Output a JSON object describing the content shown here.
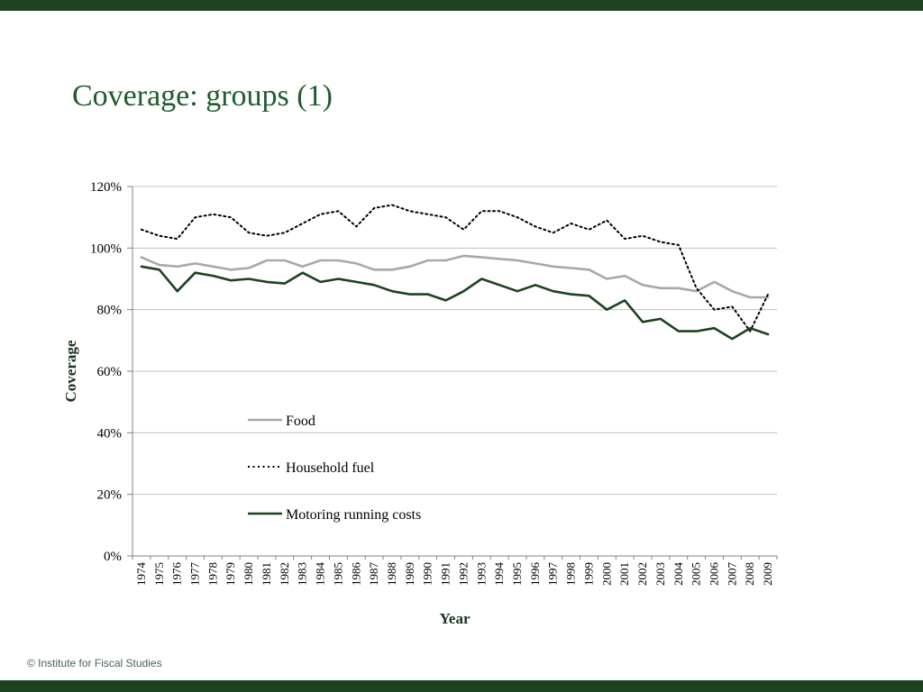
{
  "slide": {
    "title": "Coverage: groups (1)",
    "footer": "© Institute for Fiscal Studies"
  },
  "colors": {
    "border_bar": "#1c4220",
    "title_text": "#1e5c2c",
    "gridline": "#c0c0c0",
    "axis_line": "#808080",
    "food": "#a8a8a8",
    "household_fuel": "#000000",
    "motoring": "#1c4220"
  },
  "chart_data": {
    "type": "line",
    "title": "",
    "xlabel": "Year",
    "ylabel": "Coverage",
    "ylim": [
      0,
      120
    ],
    "ytick_step": 20,
    "ytick_suffix": "%",
    "grid": true,
    "legend_position": "inside-left-middle",
    "categories": [
      "1974",
      "1975",
      "1976",
      "1977",
      "1978",
      "1979",
      "1980",
      "1981",
      "1982",
      "1983",
      "1984",
      "1985",
      "1986",
      "1987",
      "1988",
      "1989",
      "1990",
      "1991",
      "1992",
      "1993",
      "1994",
      "1995",
      "1996",
      "1997",
      "1998",
      "1999",
      "2000",
      "2001",
      "2002",
      "2003",
      "2004",
      "2005",
      "2006",
      "2007",
      "2008",
      "2009"
    ],
    "series": [
      {
        "name": "Food",
        "style": "solid",
        "color_key": "food",
        "values": [
          97,
          94.5,
          94,
          95,
          94,
          93,
          93.5,
          96,
          96,
          94,
          96,
          96,
          95,
          93,
          93,
          94,
          96,
          96,
          97.5,
          97,
          96.5,
          96,
          95,
          94,
          93.5,
          93,
          90,
          91,
          88,
          87,
          87,
          86,
          89,
          86,
          84,
          84
        ]
      },
      {
        "name": "Household fuel",
        "style": "dotted",
        "color_key": "household_fuel",
        "values": [
          106,
          104,
          103,
          110,
          111,
          110,
          105,
          104,
          105,
          108,
          111,
          112,
          107,
          113,
          114,
          112,
          111,
          110,
          106,
          112,
          112,
          110,
          107,
          105,
          108,
          106,
          109,
          103,
          104,
          102,
          101,
          87,
          80,
          81,
          73,
          85
        ]
      },
      {
        "name": "Motoring running costs",
        "style": "solid",
        "color_key": "motoring",
        "values": [
          94,
          93,
          86,
          92,
          91,
          89.5,
          90,
          89,
          88.5,
          92,
          89,
          90,
          89,
          88,
          86,
          85,
          85,
          83,
          86,
          90,
          88,
          86,
          88,
          86,
          85,
          84.5,
          80,
          83,
          76,
          77,
          73,
          73,
          74,
          70.5,
          74,
          72
        ]
      }
    ]
  }
}
